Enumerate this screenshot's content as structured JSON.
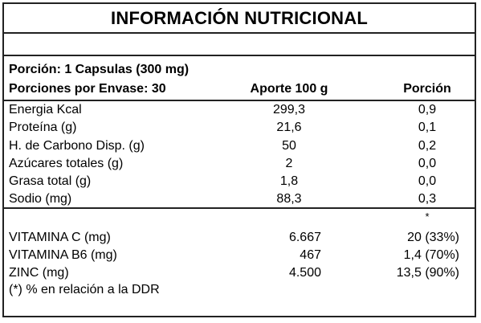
{
  "title": "INFORMACIÓN NUTRICIONAL",
  "portion_line": "Porción:  1 Capsulas (300 mg)",
  "servings_line": "Porciones por Envase: 30",
  "col_headers": {
    "per100": "Aporte 100 g",
    "portion": "Porción"
  },
  "nutrients": [
    {
      "name": "Energia Kcal",
      "per100": "299,3",
      "portion": "0,9"
    },
    {
      "name": "Proteína (g)",
      "per100": "21,6",
      "portion": "0,1"
    },
    {
      "name": "H. de Carbono Disp. (g)",
      "per100": "50",
      "portion": "0,2"
    },
    {
      "name": "Azúcares totales (g)",
      "per100": "2",
      "portion": "0,0"
    },
    {
      "name": "Grasa total (g)",
      "per100": "1,8",
      "portion": "0,0"
    },
    {
      "name": "Sodio (mg)",
      "per100": "88,3",
      "portion": "0,3"
    }
  ],
  "asterisk": "*",
  "vitamins": [
    {
      "name": "VITAMINA C (mg)",
      "per100": "6.667",
      "portion": "20 (33%)"
    },
    {
      "name": "VITAMINA B6 (mg)",
      "per100": "467",
      "portion": "1,4 (70%)"
    },
    {
      "name": "ZINC (mg)",
      "per100": "4.500",
      "portion": "13,5 (90%)"
    }
  ],
  "footnote": "(*) % en relación a la DDR"
}
